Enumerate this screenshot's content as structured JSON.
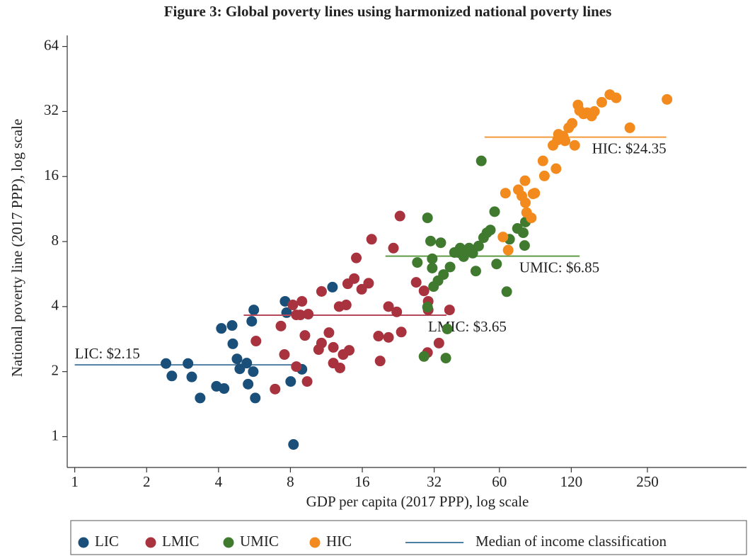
{
  "chart_data": {
    "type": "scatter",
    "title": "Figure 3: Global poverty lines using harmonized national poverty lines",
    "xlabel": "GDP per capita (2017 PPP), log scale",
    "ylabel": "National poverty line (2017 PPP), log scale",
    "xscale": "log",
    "yscale": "log",
    "xlim": [
      0.93,
      650
    ],
    "ylim": [
      0.72,
      72
    ],
    "xticks": [
      1,
      2,
      4,
      8,
      16,
      32,
      60,
      120,
      250
    ],
    "yticks": [
      1,
      2,
      4,
      8,
      16,
      32,
      64
    ],
    "legend_position": "bottom",
    "median_legend_label": "Median of income classification",
    "median_legend_color": "#4f7fa3",
    "series": [
      {
        "name": "LIC",
        "color": "#1a4f7a",
        "line_color": "#4f7fa3",
        "median": 2.15,
        "median_label": "LIC: $2.15",
        "median_range": [
          1,
          8.6
        ],
        "x": [
          2.41,
          2.55,
          2.98,
          3.09,
          3.35,
          3.92,
          4.22,
          4.11,
          4.56,
          4.59,
          4.78,
          4.91,
          5.25,
          5.32,
          5.51,
          5.62,
          5.59,
          5.7,
          7.6,
          7.71,
          8.02,
          8.24,
          8.94,
          12.0
        ],
        "values": [
          2.18,
          1.91,
          2.18,
          1.89,
          1.51,
          1.71,
          1.67,
          3.17,
          3.27,
          2.69,
          2.29,
          2.06,
          2.19,
          1.75,
          3.42,
          3.86,
          2.0,
          1.51,
          4.23,
          3.75,
          1.8,
          0.92,
          2.05,
          4.92
        ]
      },
      {
        "name": "LMIC",
        "color": "#a8323e",
        "line_color": "#b5485a",
        "median": 3.65,
        "median_label": "LMIC: $3.65",
        "median_range": [
          5.1,
          36
        ],
        "x": [
          6.9,
          5.74,
          7.3,
          7.55,
          8.19,
          8.47,
          8.94,
          8.47,
          8.8,
          9.5,
          9.2,
          9.4,
          10.5,
          10.8,
          10.8,
          11.6,
          12.1,
          12.1,
          12.9,
          12.8,
          13.7,
          13.3,
          14.1,
          13.9,
          14.8,
          15.1,
          15.9,
          17.0,
          17.5,
          18.7,
          19.0,
          20.6,
          20.6,
          21.6,
          22.3,
          23.0,
          23.3,
          26.9,
          29.0,
          30.2,
          30.2,
          33.5,
          30.0,
          37.1
        ],
        "values": [
          1.66,
          2.77,
          3.25,
          2.4,
          4.07,
          3.66,
          4.23,
          2.11,
          3.66,
          3.69,
          2.94,
          1.8,
          2.53,
          4.7,
          2.71,
          3.03,
          2.59,
          2.19,
          2.08,
          4.0,
          4.07,
          2.4,
          2.51,
          5.1,
          5.39,
          6.72,
          4.81,
          5.13,
          8.2,
          2.92,
          2.24,
          4.0,
          2.88,
          7.46,
          3.78,
          10.5,
          3.05,
          5.18,
          4.73,
          4.23,
          3.86,
          2.71,
          2.45,
          3.86
        ]
      },
      {
        "name": "UMIC",
        "color": "#3f7a2f",
        "line_color": "#5f9a45",
        "median": 6.85,
        "median_label": "UMIC: $6.85",
        "median_range": [
          20,
          130
        ],
        "x": [
          29.0,
          30.0,
          30.0,
          30.9,
          31.4,
          31.4,
          27.2,
          31.8,
          33.2,
          34.1,
          35.0,
          35.8,
          36.3,
          37.3,
          38.9,
          40.2,
          41.1,
          42.5,
          43.6,
          44.5,
          44.8,
          46.4,
          47.8,
          49.1,
          50.4,
          51.5,
          53.2,
          55.0,
          57.3,
          58.4,
          64.4,
          66.2,
          71.4,
          75.5,
          77.1,
          76.5
        ],
        "values": [
          2.35,
          10.3,
          3.98,
          8.04,
          6.66,
          6.03,
          6.4,
          4.95,
          5.27,
          7.9,
          5.63,
          2.31,
          3.15,
          6.1,
          7.12,
          7.12,
          7.46,
          6.81,
          7.2,
          7.2,
          7.46,
          7.07,
          5.84,
          7.63,
          18.9,
          8.34,
          8.79,
          9.05,
          11.0,
          6.3,
          4.69,
          8.2,
          9.2,
          8.79,
          9.85,
          7.67
        ]
      },
      {
        "name": "HIC",
        "color": "#f28a1e",
        "line_color": "#f59a3a",
        "median": 24.35,
        "median_label": "HIC: $24.35",
        "median_range": [
          52,
          300
        ],
        "x": [
          62.1,
          63.6,
          65.3,
          72.0,
          74.5,
          77.1,
          78.0,
          81.6,
          83.0,
          76.8,
          84.4,
          91.3,
          92.6,
          100.6,
          103.6,
          105,
          106,
          111,
          113,
          117,
          121,
          124,
          128,
          130,
          135,
          140,
          146,
          150,
          161,
          174,
          185,
          211,
          302
        ],
        "values": [
          8.4,
          13.4,
          7.3,
          13.9,
          13.0,
          12.1,
          10.9,
          10.3,
          13.3,
          15.3,
          13.4,
          18.9,
          16.1,
          22.3,
          17.4,
          23.6,
          25.1,
          24.6,
          23.4,
          26.9,
          28.2,
          22.3,
          34.3,
          32.3,
          31.2,
          31.6,
          30.5,
          32.0,
          35.3,
          38.3,
          37.0,
          26.9,
          36.4
        ]
      }
    ]
  }
}
